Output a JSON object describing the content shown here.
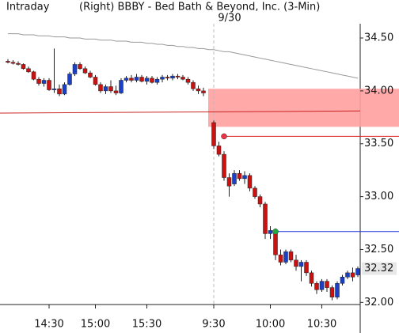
{
  "header": {
    "left": "Intraday",
    "title": "(Right)  BBBY - Bed Bath & Beyond, Inc.  (3-Min)"
  },
  "chart_data": {
    "type": "candlestick",
    "categories": [
      null,
      null,
      null,
      null,
      null,
      null,
      null,
      null,
      "14:30",
      null,
      null,
      null,
      null,
      null,
      null,
      null,
      null,
      "15:00",
      null,
      null,
      null,
      null,
      null,
      null,
      null,
      null,
      null,
      "15:30",
      null,
      null,
      null,
      null,
      null,
      null,
      null,
      null,
      null,
      null,
      null,
      null,
      "9:30",
      null,
      null,
      null,
      null,
      null,
      null,
      null,
      null,
      null,
      null,
      "10:00",
      null,
      null,
      null,
      null,
      null,
      null,
      null,
      null,
      null,
      "10:30",
      null,
      null,
      null,
      null,
      null,
      null,
      null
    ],
    "open": [
      34.28,
      34.27,
      34.26,
      34.25,
      34.21,
      34.18,
      34.11,
      34.07,
      34.1,
      34.01,
      34.02,
      33.97,
      34.06,
      34.16,
      34.25,
      34.21,
      34.17,
      34.13,
      34.06,
      34.0,
      34.04,
      34.0,
      33.98,
      34.1,
      34.12,
      34.1,
      34.13,
      34.09,
      34.12,
      34.08,
      34.11,
      34.13,
      34.12,
      34.14,
      34.13,
      34.11,
      34.08,
      34.02,
      34.0,
      null,
      33.7,
      33.48,
      33.4,
      33.18,
      33.12,
      33.22,
      33.17,
      33.2,
      33.08,
      33.0,
      32.93,
      32.65,
      32.68,
      32.45,
      32.38,
      32.48,
      32.4,
      32.34,
      32.38,
      32.28,
      32.18,
      32.12,
      32.2,
      32.14,
      32.05,
      32.18,
      32.24,
      32.28,
      32.26
    ],
    "high": [
      34.3,
      34.29,
      34.28,
      34.26,
      34.23,
      34.19,
      34.13,
      34.12,
      34.12,
      34.4,
      34.06,
      34.08,
      34.18,
      34.27,
      34.27,
      34.23,
      34.19,
      34.15,
      34.08,
      34.06,
      34.1,
      34.05,
      34.12,
      34.14,
      34.15,
      34.16,
      34.15,
      34.14,
      34.14,
      34.13,
      34.15,
      34.15,
      34.16,
      34.16,
      34.15,
      34.13,
      34.1,
      34.05,
      34.03,
      null,
      33.72,
      33.52,
      33.43,
      33.22,
      33.25,
      33.25,
      33.24,
      33.22,
      33.1,
      33.02,
      32.95,
      32.72,
      32.7,
      32.5,
      32.5,
      32.5,
      32.45,
      32.4,
      32.4,
      32.3,
      32.2,
      32.22,
      32.22,
      32.16,
      32.2,
      32.26,
      32.3,
      32.33,
      32.34
    ],
    "low": [
      34.26,
      34.25,
      34.24,
      34.2,
      34.17,
      34.1,
      34.05,
      34.04,
      34.0,
      33.98,
      33.95,
      33.96,
      34.05,
      34.14,
      34.2,
      34.16,
      34.12,
      34.05,
      33.98,
      33.97,
      33.98,
      33.96,
      33.97,
      34.08,
      34.08,
      34.08,
      34.08,
      34.06,
      34.07,
      34.06,
      34.08,
      34.1,
      34.1,
      34.11,
      34.1,
      34.06,
      34.0,
      33.97,
      33.95,
      null,
      33.45,
      33.38,
      33.15,
      33.0,
      33.1,
      33.15,
      33.12,
      33.05,
      32.98,
      32.9,
      32.6,
      32.6,
      32.4,
      32.35,
      32.36,
      32.38,
      32.3,
      32.2,
      32.25,
      32.15,
      32.08,
      32.1,
      32.1,
      32.02,
      32.03,
      32.16,
      32.22,
      32.2,
      32.24
    ],
    "close": [
      34.27,
      34.26,
      34.25,
      34.21,
      34.18,
      34.11,
      34.07,
      34.1,
      34.01,
      34.02,
      33.97,
      34.06,
      34.16,
      34.25,
      34.21,
      34.17,
      34.13,
      34.06,
      34.0,
      34.04,
      34.0,
      33.98,
      34.1,
      34.12,
      34.1,
      34.13,
      34.09,
      34.12,
      34.08,
      34.11,
      34.13,
      34.12,
      34.14,
      34.13,
      34.11,
      34.08,
      34.02,
      34.0,
      33.98,
      null,
      33.48,
      33.4,
      33.18,
      33.1,
      33.22,
      33.17,
      33.2,
      33.08,
      33.0,
      32.93,
      32.65,
      32.68,
      32.45,
      32.38,
      32.48,
      32.4,
      32.34,
      32.38,
      32.28,
      32.18,
      32.12,
      32.2,
      32.14,
      32.05,
      32.18,
      32.24,
      32.28,
      32.24,
      32.32
    ],
    "up_color": "#1a3fc8",
    "down_color": "#cc1111",
    "moving_average": {
      "color": "#999999",
      "values": [
        34.54,
        34.54,
        34.54,
        34.53,
        34.53,
        34.53,
        34.52,
        34.52,
        34.52,
        34.51,
        34.51,
        34.51,
        34.5,
        34.5,
        34.5,
        34.49,
        34.49,
        34.49,
        34.48,
        34.48,
        34.48,
        34.47,
        34.47,
        34.47,
        34.46,
        34.46,
        34.46,
        34.45,
        34.45,
        34.44,
        34.44,
        34.43,
        34.43,
        34.42,
        34.42,
        34.41,
        34.41,
        34.4,
        34.4,
        34.39,
        34.39,
        34.38,
        34.37,
        34.37,
        34.36,
        34.35,
        34.34,
        34.33,
        34.32,
        34.31,
        34.3,
        34.29,
        34.28,
        34.27,
        34.26,
        34.25,
        34.24,
        34.23,
        34.22,
        34.21,
        34.2,
        34.19,
        34.18,
        34.17,
        34.16,
        34.15,
        34.14,
        34.13,
        34.12
      ]
    },
    "reference_line": {
      "color": "#cc2222",
      "values": [
        33.79,
        33.81
      ]
    },
    "zone": {
      "color": "#ffa0a0",
      "top": 34.02,
      "bottom": 33.66,
      "start": 40
    },
    "levels": [
      {
        "color": "#dd2222",
        "marker_color": "#ee3344",
        "value": 33.57,
        "start": 42
      },
      {
        "color": "#2233dd",
        "marker_color": "#22aa44",
        "value": 32.67,
        "start": 52
      }
    ],
    "session_break": {
      "index": 40,
      "label": "9/30"
    },
    "ylim": [
      31.98,
      34.56
    ],
    "yticks": [
      {
        "value": 32,
        "label": "32.00"
      },
      {
        "value": 32.5,
        "label": "32.50"
      },
      {
        "value": 33,
        "label": "33.00"
      },
      {
        "value": 33.5,
        "label": "33.50"
      },
      {
        "value": 34,
        "label": "34.00"
      },
      {
        "value": 34.5,
        "label": "34.50"
      }
    ],
    "last_price": {
      "value": 32.32,
      "label": "32.32"
    }
  }
}
